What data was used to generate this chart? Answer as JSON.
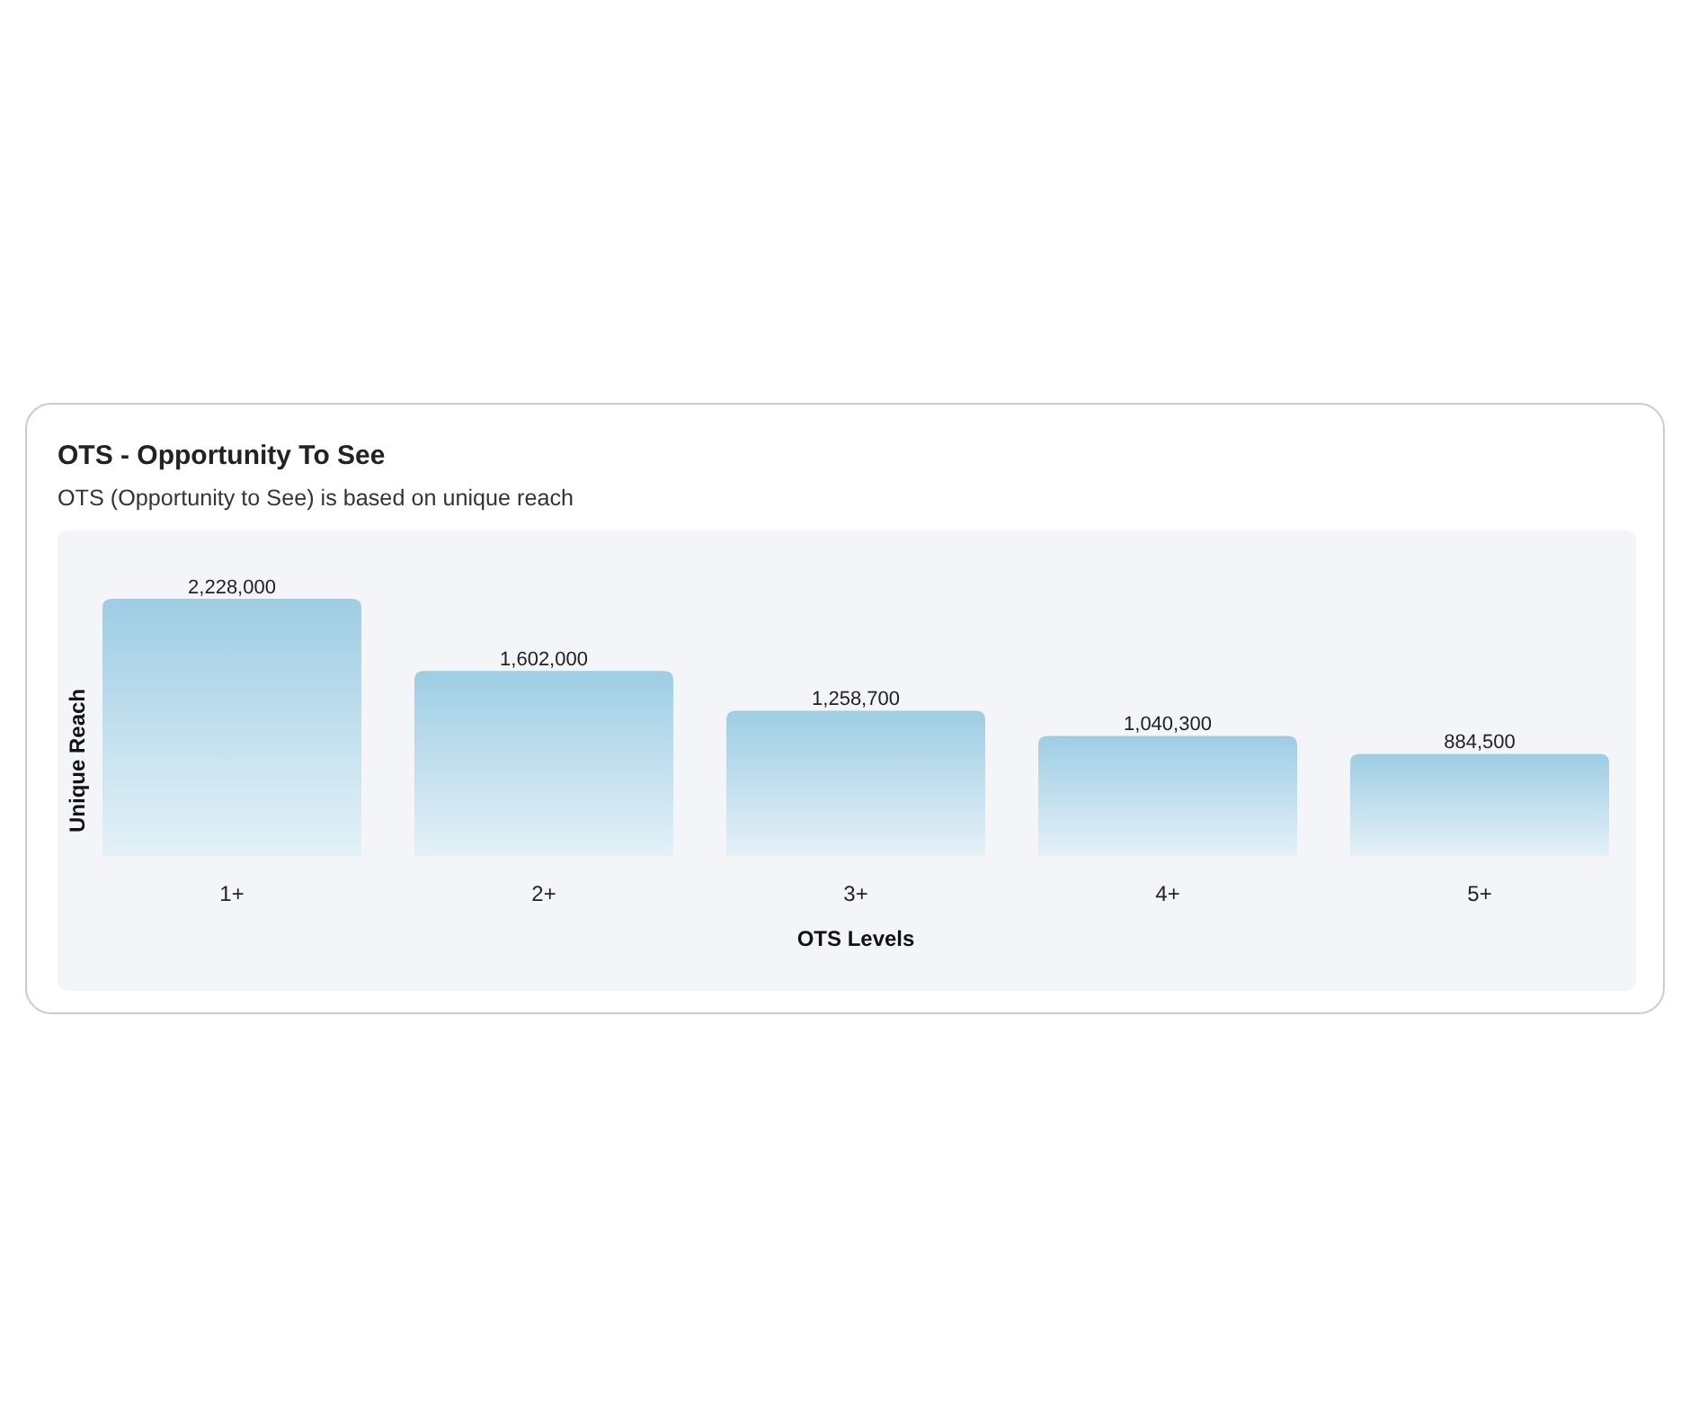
{
  "chart_data": {
    "type": "bar",
    "title": "OTS - Opportunity To See",
    "subtitle": "OTS (Opportunity to See) is based on unique reach",
    "xlabel": "OTS Levels",
    "ylabel": "Unique Reach",
    "categories": [
      "1+",
      "2+",
      "3+",
      "4+",
      "5+"
    ],
    "values": [
      2228000,
      1602000,
      1258700,
      1040300,
      884500
    ],
    "color": "#9ecde4",
    "value_labels": [
      "2,228,000",
      "1,602,000",
      "1,258,700",
      "1,040,300",
      "884,500"
    ]
  }
}
